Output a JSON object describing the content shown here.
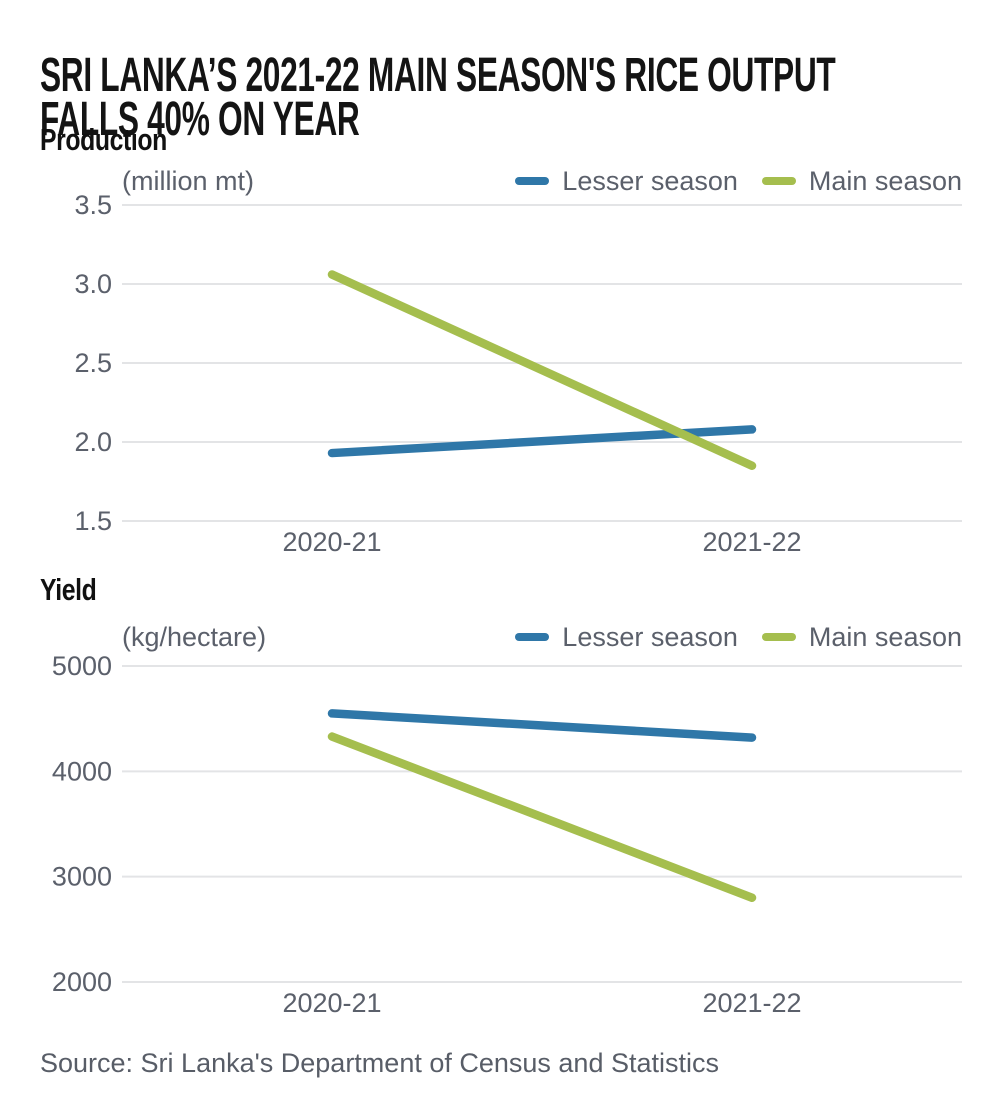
{
  "title": {
    "line1": "SRI LANKA’S 2021-22 MAIN SEASON'S RICE OUTPUT",
    "line2": "FALLS 40% ON YEAR"
  },
  "source": "Source: Sri Lanka's Department of Census and Statistics",
  "colors": {
    "lesser": "#2f77a8",
    "main": "#a5be4e",
    "grid": "#e3e4e6",
    "axis_text": "#5b606b",
    "title_text": "#141414"
  },
  "chart_data": [
    {
      "type": "line",
      "title": "Production",
      "unit": "(million mt)",
      "categories": [
        "2020-21",
        "2021-22"
      ],
      "series": [
        {
          "name": "Lesser season",
          "color_key": "lesser",
          "values": [
            1.93,
            2.08
          ]
        },
        {
          "name": "Main season",
          "color_key": "main",
          "values": [
            3.06,
            1.85
          ]
        }
      ],
      "ylim": [
        1.5,
        3.5
      ],
      "yticks": [
        3.5,
        3.0,
        2.5,
        2.0,
        1.5
      ],
      "ytick_labels": [
        "3.5",
        "3.0",
        "2.5",
        "2.0",
        "1.5"
      ],
      "grid": true,
      "legend_position": "top-right"
    },
    {
      "type": "line",
      "title": "Yield",
      "unit": "(kg/hectare)",
      "categories": [
        "2020-21",
        "2021-22"
      ],
      "series": [
        {
          "name": "Lesser season",
          "color_key": "lesser",
          "values": [
            4550,
            4320
          ]
        },
        {
          "name": "Main season",
          "color_key": "main",
          "values": [
            4330,
            2800
          ]
        }
      ],
      "ylim": [
        2000,
        5000
      ],
      "yticks": [
        5000,
        4000,
        3000,
        2000
      ],
      "ytick_labels": [
        "5000",
        "4000",
        "3000",
        "2000"
      ],
      "grid": true,
      "legend_position": "top-right"
    }
  ]
}
